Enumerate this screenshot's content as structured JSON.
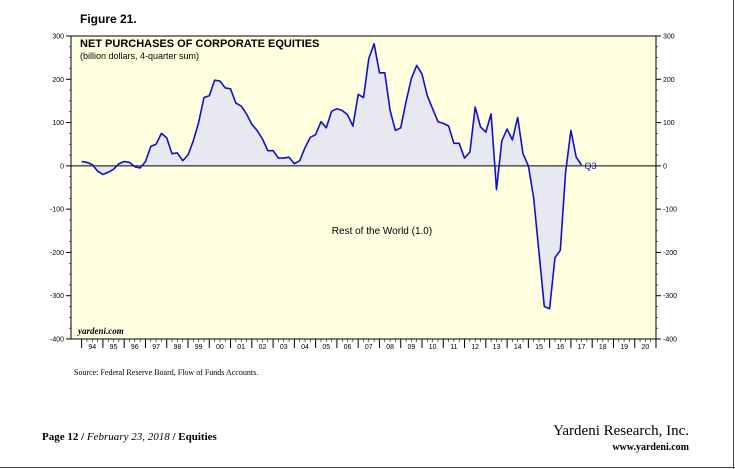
{
  "figure_label": "Figure 21.",
  "source": "Source: Federal Reserve Board, Flow of Funds Accounts.",
  "footer": {
    "page": "Page 12",
    "sep1": " / ",
    "date": "February 23, 2018",
    "sep2": " / ",
    "section": "Equities",
    "company": "Yardeni Research, Inc.",
    "website": "www.yardeni.com"
  },
  "colors": {
    "plot_bg": "#ffffe0",
    "line": "#1010cc",
    "fill": "#e8e8f0"
  },
  "chart_data": {
    "type": "area",
    "title": "NET PURCHASES OF CORPORATE EQUITIES",
    "subtitle": "(billion dollars, 4-quarter sum)",
    "series": [
      {
        "label": "Rest of the World (1.0)",
        "x": [
          1994.0,
          1994.25,
          1994.5,
          1994.75,
          1995.0,
          1995.25,
          1995.5,
          1995.75,
          1996.0,
          1996.25,
          1996.5,
          1996.75,
          1997.0,
          1997.25,
          1997.5,
          1997.75,
          1998.0,
          1998.25,
          1998.5,
          1998.75,
          1999.0,
          1999.25,
          1999.5,
          1999.75,
          2000.0,
          2000.25,
          2000.5,
          2000.75,
          2001.0,
          2001.25,
          2001.5,
          2001.75,
          2002.0,
          2002.25,
          2002.5,
          2002.75,
          2003.0,
          2003.25,
          2003.5,
          2003.75,
          2004.0,
          2004.25,
          2004.5,
          2004.75,
          2005.0,
          2005.25,
          2005.5,
          2005.75,
          2006.0,
          2006.25,
          2006.5,
          2006.75,
          2007.0,
          2007.25,
          2007.5,
          2007.75,
          2008.0,
          2008.25,
          2008.5,
          2008.75,
          2009.0,
          2009.25,
          2009.5,
          2009.75,
          2010.0,
          2010.25,
          2010.5,
          2010.75,
          2011.0,
          2011.25,
          2011.5,
          2011.75,
          2012.0,
          2012.25,
          2012.5,
          2012.75,
          2013.0,
          2013.25,
          2013.5,
          2013.75,
          2014.0,
          2014.25,
          2014.5,
          2014.75,
          2015.0,
          2015.25,
          2015.5,
          2015.75,
          2016.0,
          2016.25,
          2016.5,
          2016.75,
          2017.0,
          2017.25,
          2017.5
        ],
        "y": [
          10,
          8,
          3,
          -12,
          -20,
          -15,
          -8,
          5,
          10,
          8,
          -2,
          -5,
          10,
          45,
          50,
          75,
          65,
          28,
          30,
          12,
          25,
          58,
          100,
          158,
          162,
          198,
          196,
          180,
          178,
          145,
          138,
          120,
          96,
          82,
          62,
          35,
          35,
          18,
          18,
          20,
          5,
          12,
          42,
          66,
          72,
          102,
          88,
          126,
          132,
          128,
          118,
          92,
          165,
          158,
          248,
          282,
          215,
          215,
          128,
          82,
          88,
          148,
          202,
          232,
          212,
          162,
          132,
          102,
          98,
          92,
          52,
          52,
          18,
          32,
          136,
          90,
          78,
          120,
          -55,
          58,
          85,
          60,
          112,
          28,
          0,
          -75,
          -200,
          -325,
          -330,
          -212,
          -195,
          -15,
          82,
          20,
          2
        ],
        "annotations": [
          {
            "x": 2017.5,
            "y": 2,
            "text": "Q3"
          }
        ]
      }
    ],
    "xlim": [
      1993.5,
      2021.0
    ],
    "ylim": [
      -400,
      300
    ],
    "xticks": [
      "94",
      "95",
      "96",
      "97",
      "98",
      "99",
      "00",
      "01",
      "02",
      "03",
      "04",
      "05",
      "06",
      "07",
      "08",
      "09",
      "10",
      "11",
      "12",
      "13",
      "14",
      "15",
      "16",
      "17",
      "18",
      "19",
      "20"
    ],
    "yticks": [
      -400,
      -300,
      -200,
      -100,
      0,
      100,
      200,
      300
    ],
    "watermark": "yardeni.com",
    "grid": false
  }
}
